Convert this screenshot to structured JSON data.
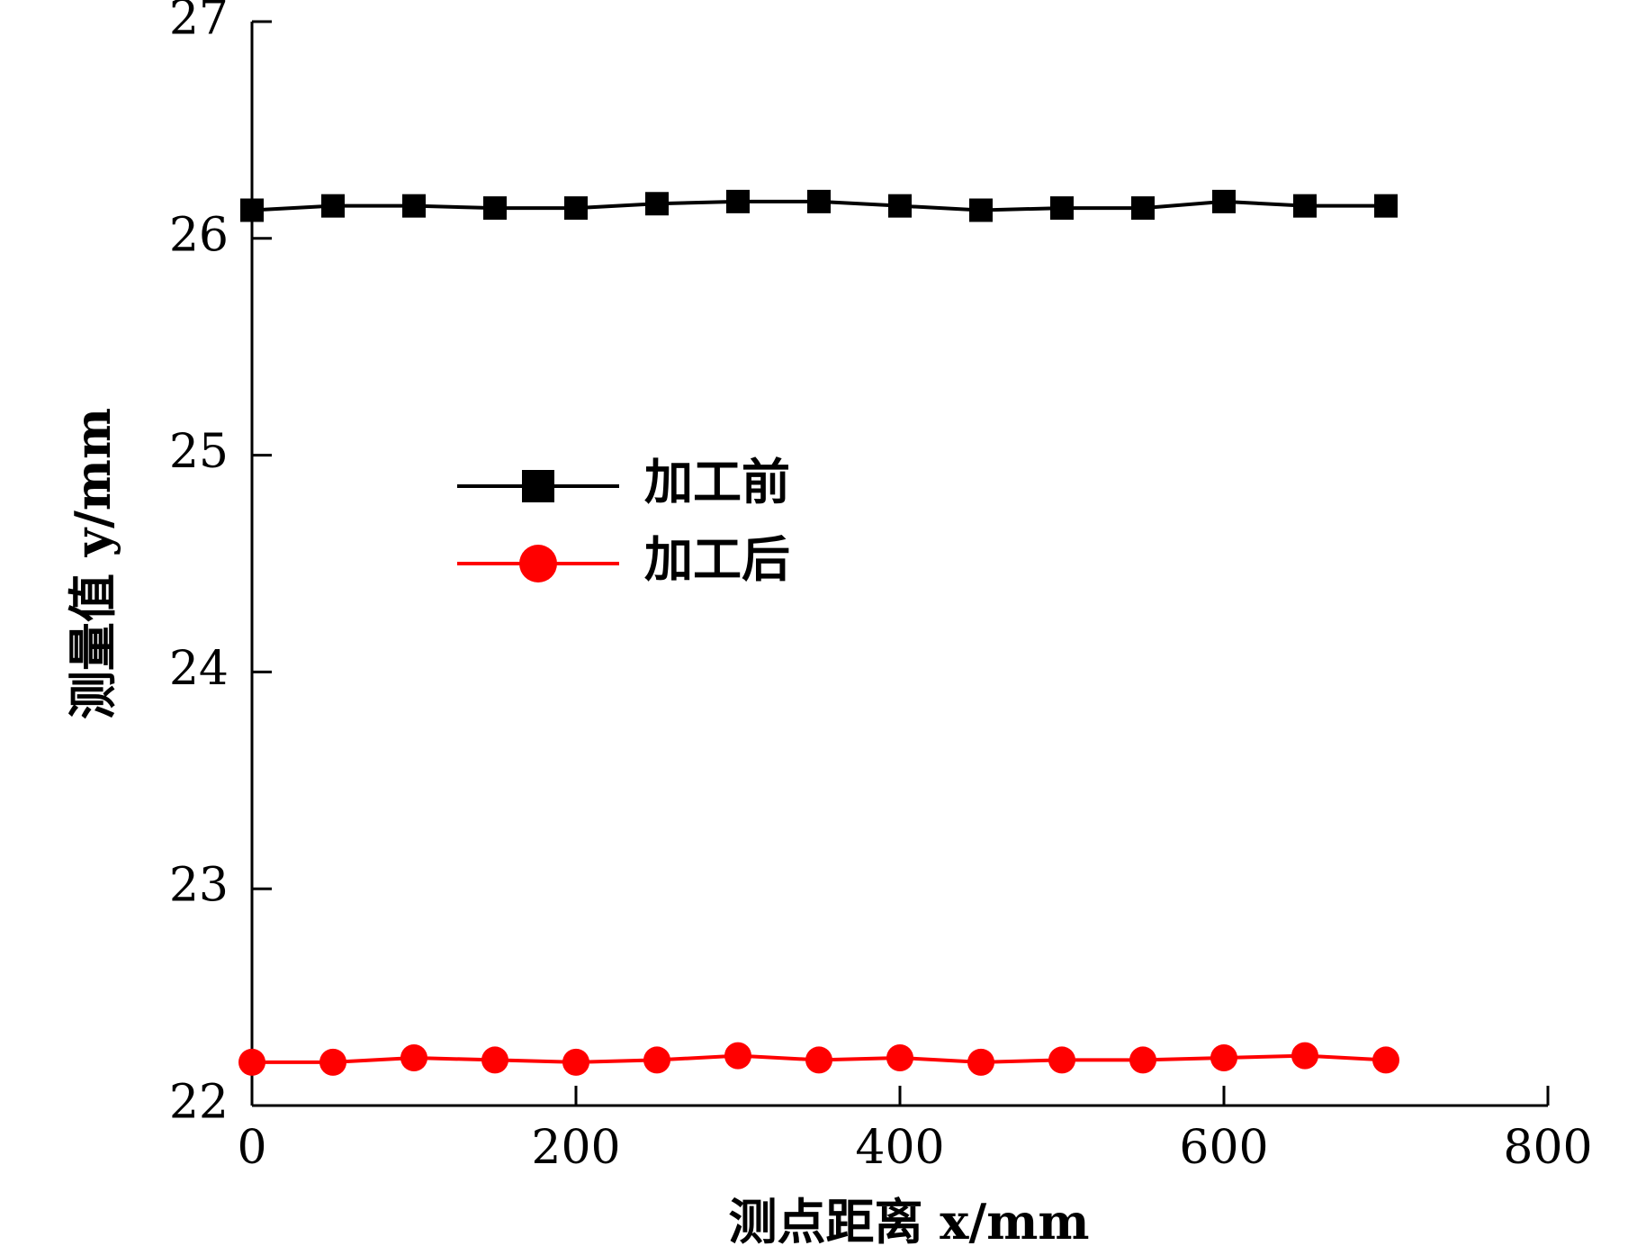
{
  "chart_data": {
    "type": "line",
    "xlabel": "测点距离 x/mm",
    "ylabel": "测量值 y/mm",
    "xlim": [
      0,
      800
    ],
    "ylim": [
      22,
      27
    ],
    "xticks": [
      0,
      200,
      400,
      600,
      800
    ],
    "yticks": [
      22,
      23,
      24,
      25,
      26,
      27
    ],
    "xtick_labels": [
      "0",
      "200",
      "400",
      "600",
      "800"
    ],
    "ytick_labels": [
      "22",
      "23",
      "24",
      "25",
      "26",
      "27"
    ],
    "grid": false,
    "legend_position": "center-left",
    "x": [
      0,
      50,
      100,
      150,
      200,
      250,
      300,
      350,
      400,
      450,
      500,
      550,
      600,
      650,
      700
    ],
    "series": [
      {
        "name": "加工前",
        "marker": "square",
        "color": "#000000",
        "values": [
          26.13,
          26.15,
          26.15,
          26.14,
          26.14,
          26.16,
          26.17,
          26.17,
          26.15,
          26.13,
          26.14,
          26.14,
          26.17,
          26.15,
          26.15
        ]
      },
      {
        "name": "加工后",
        "marker": "circle",
        "color": "#ff0000",
        "values": [
          22.2,
          22.2,
          22.22,
          22.21,
          22.2,
          22.21,
          22.23,
          22.21,
          22.22,
          22.2,
          22.21,
          22.21,
          22.22,
          22.23,
          22.21
        ]
      }
    ]
  }
}
